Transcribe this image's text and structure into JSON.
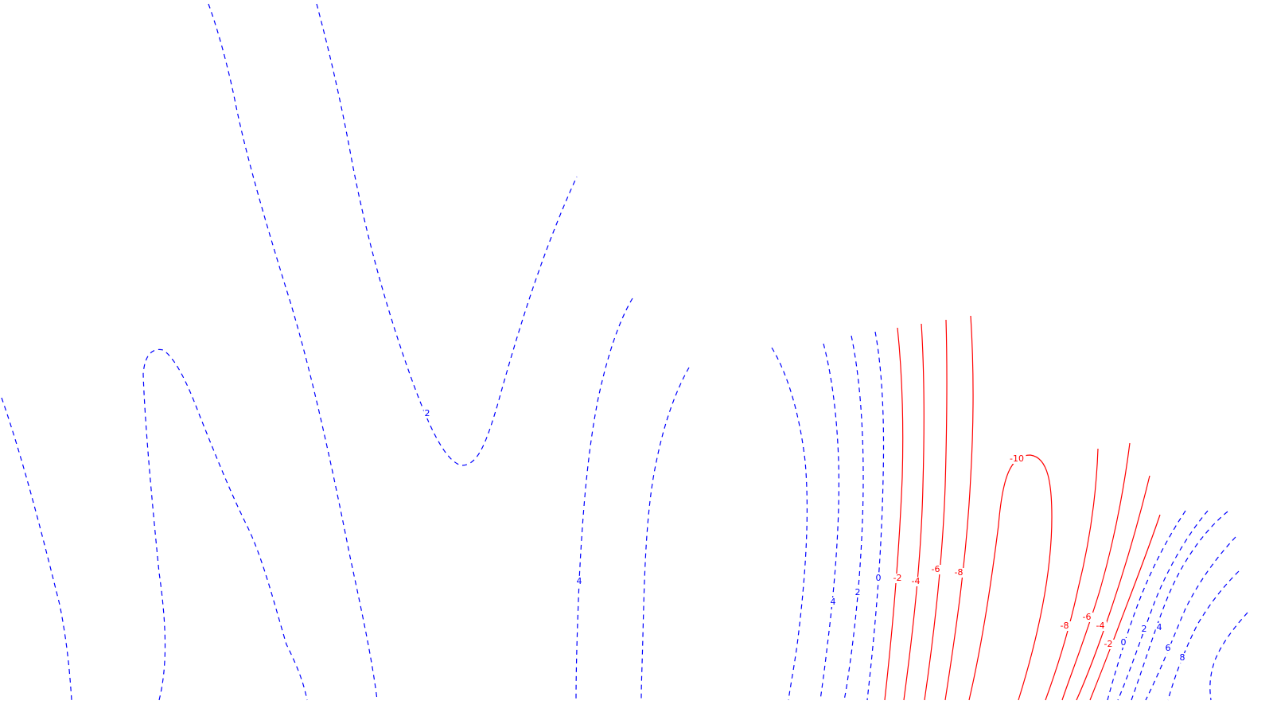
{
  "chart_data": {
    "type": "contour",
    "title": "",
    "xlabel": "",
    "ylabel": "",
    "grid": false,
    "legend": "none",
    "colors": {
      "positive": "#0000ff",
      "negative": "#ff0000"
    },
    "line_styles": {
      "positive": "dashed",
      "negative": "solid"
    },
    "levels": [
      -10,
      -8,
      -6,
      -4,
      -2,
      0,
      2,
      4,
      6,
      8
    ],
    "contour_labels": [
      "2",
      "4",
      "4",
      "2",
      "0",
      "-2",
      "-4",
      "-6",
      "-8",
      "-10",
      "-8",
      "-6",
      "-4",
      "-2",
      "0",
      "2",
      "4",
      "6",
      "8"
    ]
  }
}
